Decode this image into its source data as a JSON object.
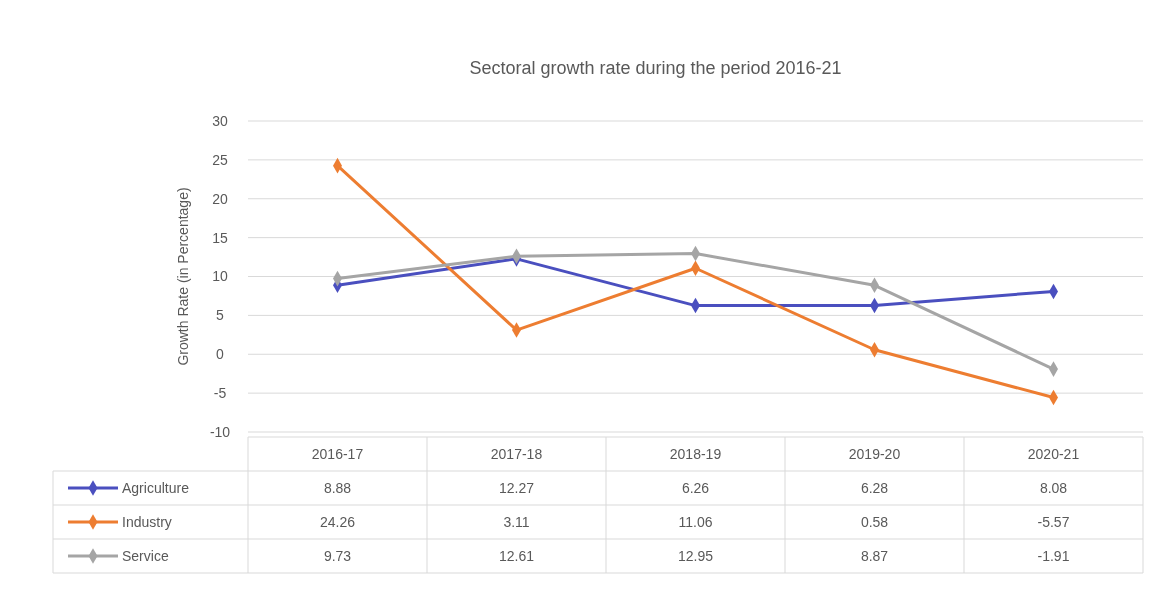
{
  "chart_data": {
    "type": "line",
    "title": "Sectoral growth rate during the period 2016-21",
    "ylabel": "Growth Rate (in Percentage)",
    "categories": [
      "2016-17",
      "2017-18",
      "2018-19",
      "2019-20",
      "2020-21"
    ],
    "series": [
      {
        "name": "Agriculture",
        "color": "#4a4fbf",
        "values": [
          8.88,
          12.27,
          6.26,
          6.28,
          8.08
        ]
      },
      {
        "name": "Industry",
        "color": "#ed7d31",
        "values": [
          24.26,
          3.11,
          11.06,
          0.58,
          -5.57
        ]
      },
      {
        "name": "Service",
        "color": "#a5a5a5",
        "values": [
          9.73,
          12.61,
          12.95,
          8.87,
          -1.91
        ]
      }
    ],
    "ylim": [
      -10,
      30
    ],
    "yticks": [
      -10,
      -5,
      0,
      5,
      10,
      15,
      20,
      25,
      30
    ],
    "grid": "y",
    "marker": "diamond",
    "line_style": "solid",
    "data_labels": true,
    "legend": "bottom left"
  }
}
